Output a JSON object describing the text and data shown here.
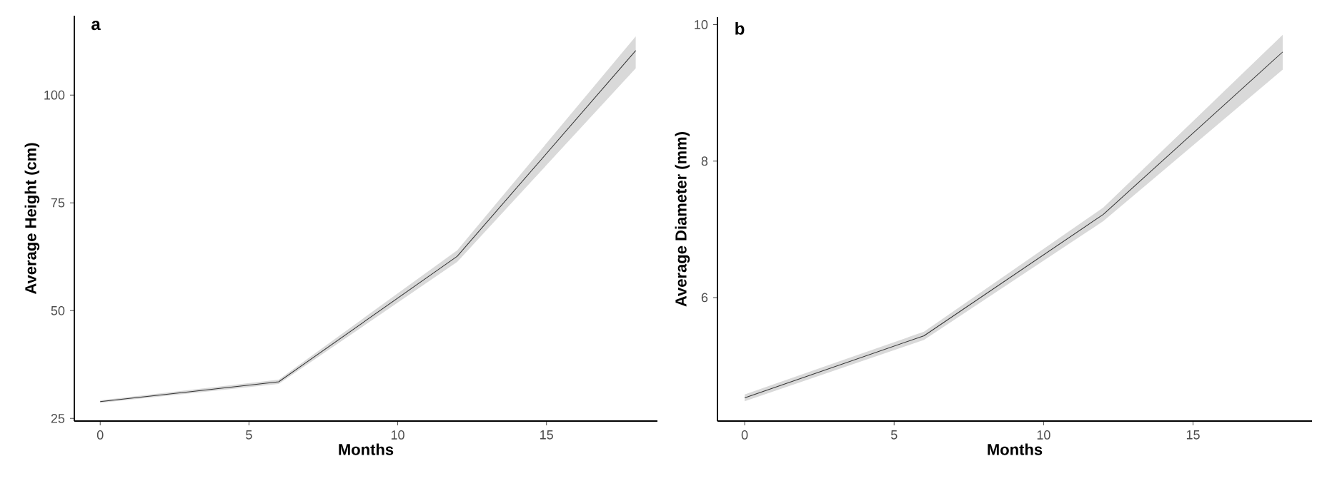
{
  "chart_data": [
    {
      "type": "line",
      "title": "a",
      "xlabel": "Months",
      "ylabel": "Average Height (cm)",
      "x": [
        0,
        6,
        12,
        18
      ],
      "series": [
        {
          "color": "#333333",
          "values": [
            28.9,
            33.5,
            62.6,
            110.3
          ],
          "lower": [
            28.6,
            33.0,
            61.3,
            106.2
          ],
          "upper": [
            29.2,
            34.0,
            64.0,
            113.6
          ]
        }
      ],
      "xlim": [
        -0.87,
        18.73
      ],
      "ylim": [
        24.4,
        118.4
      ],
      "xticks": [
        0,
        5,
        10,
        15
      ],
      "yticks": [
        25,
        50,
        75,
        100
      ],
      "grid": false,
      "line_style": "solid"
    },
    {
      "type": "line",
      "title": "b",
      "xlabel": "Months",
      "ylabel": "Average Diameter (mm)",
      "x": [
        0,
        6,
        12,
        18
      ],
      "series": [
        {
          "color": "#333333",
          "values": [
            4.53,
            5.44,
            7.22,
            9.6
          ],
          "lower": [
            4.48,
            5.38,
            7.12,
            9.34
          ],
          "upper": [
            4.58,
            5.5,
            7.32,
            9.85
          ]
        }
      ],
      "xlim": [
        -0.91,
        18.98
      ],
      "ylim": [
        4.19,
        10.11
      ],
      "xticks": [
        0,
        5,
        10,
        15
      ],
      "yticks": [
        6,
        8,
        10
      ],
      "grid": false,
      "line_style": "solid"
    }
  ]
}
